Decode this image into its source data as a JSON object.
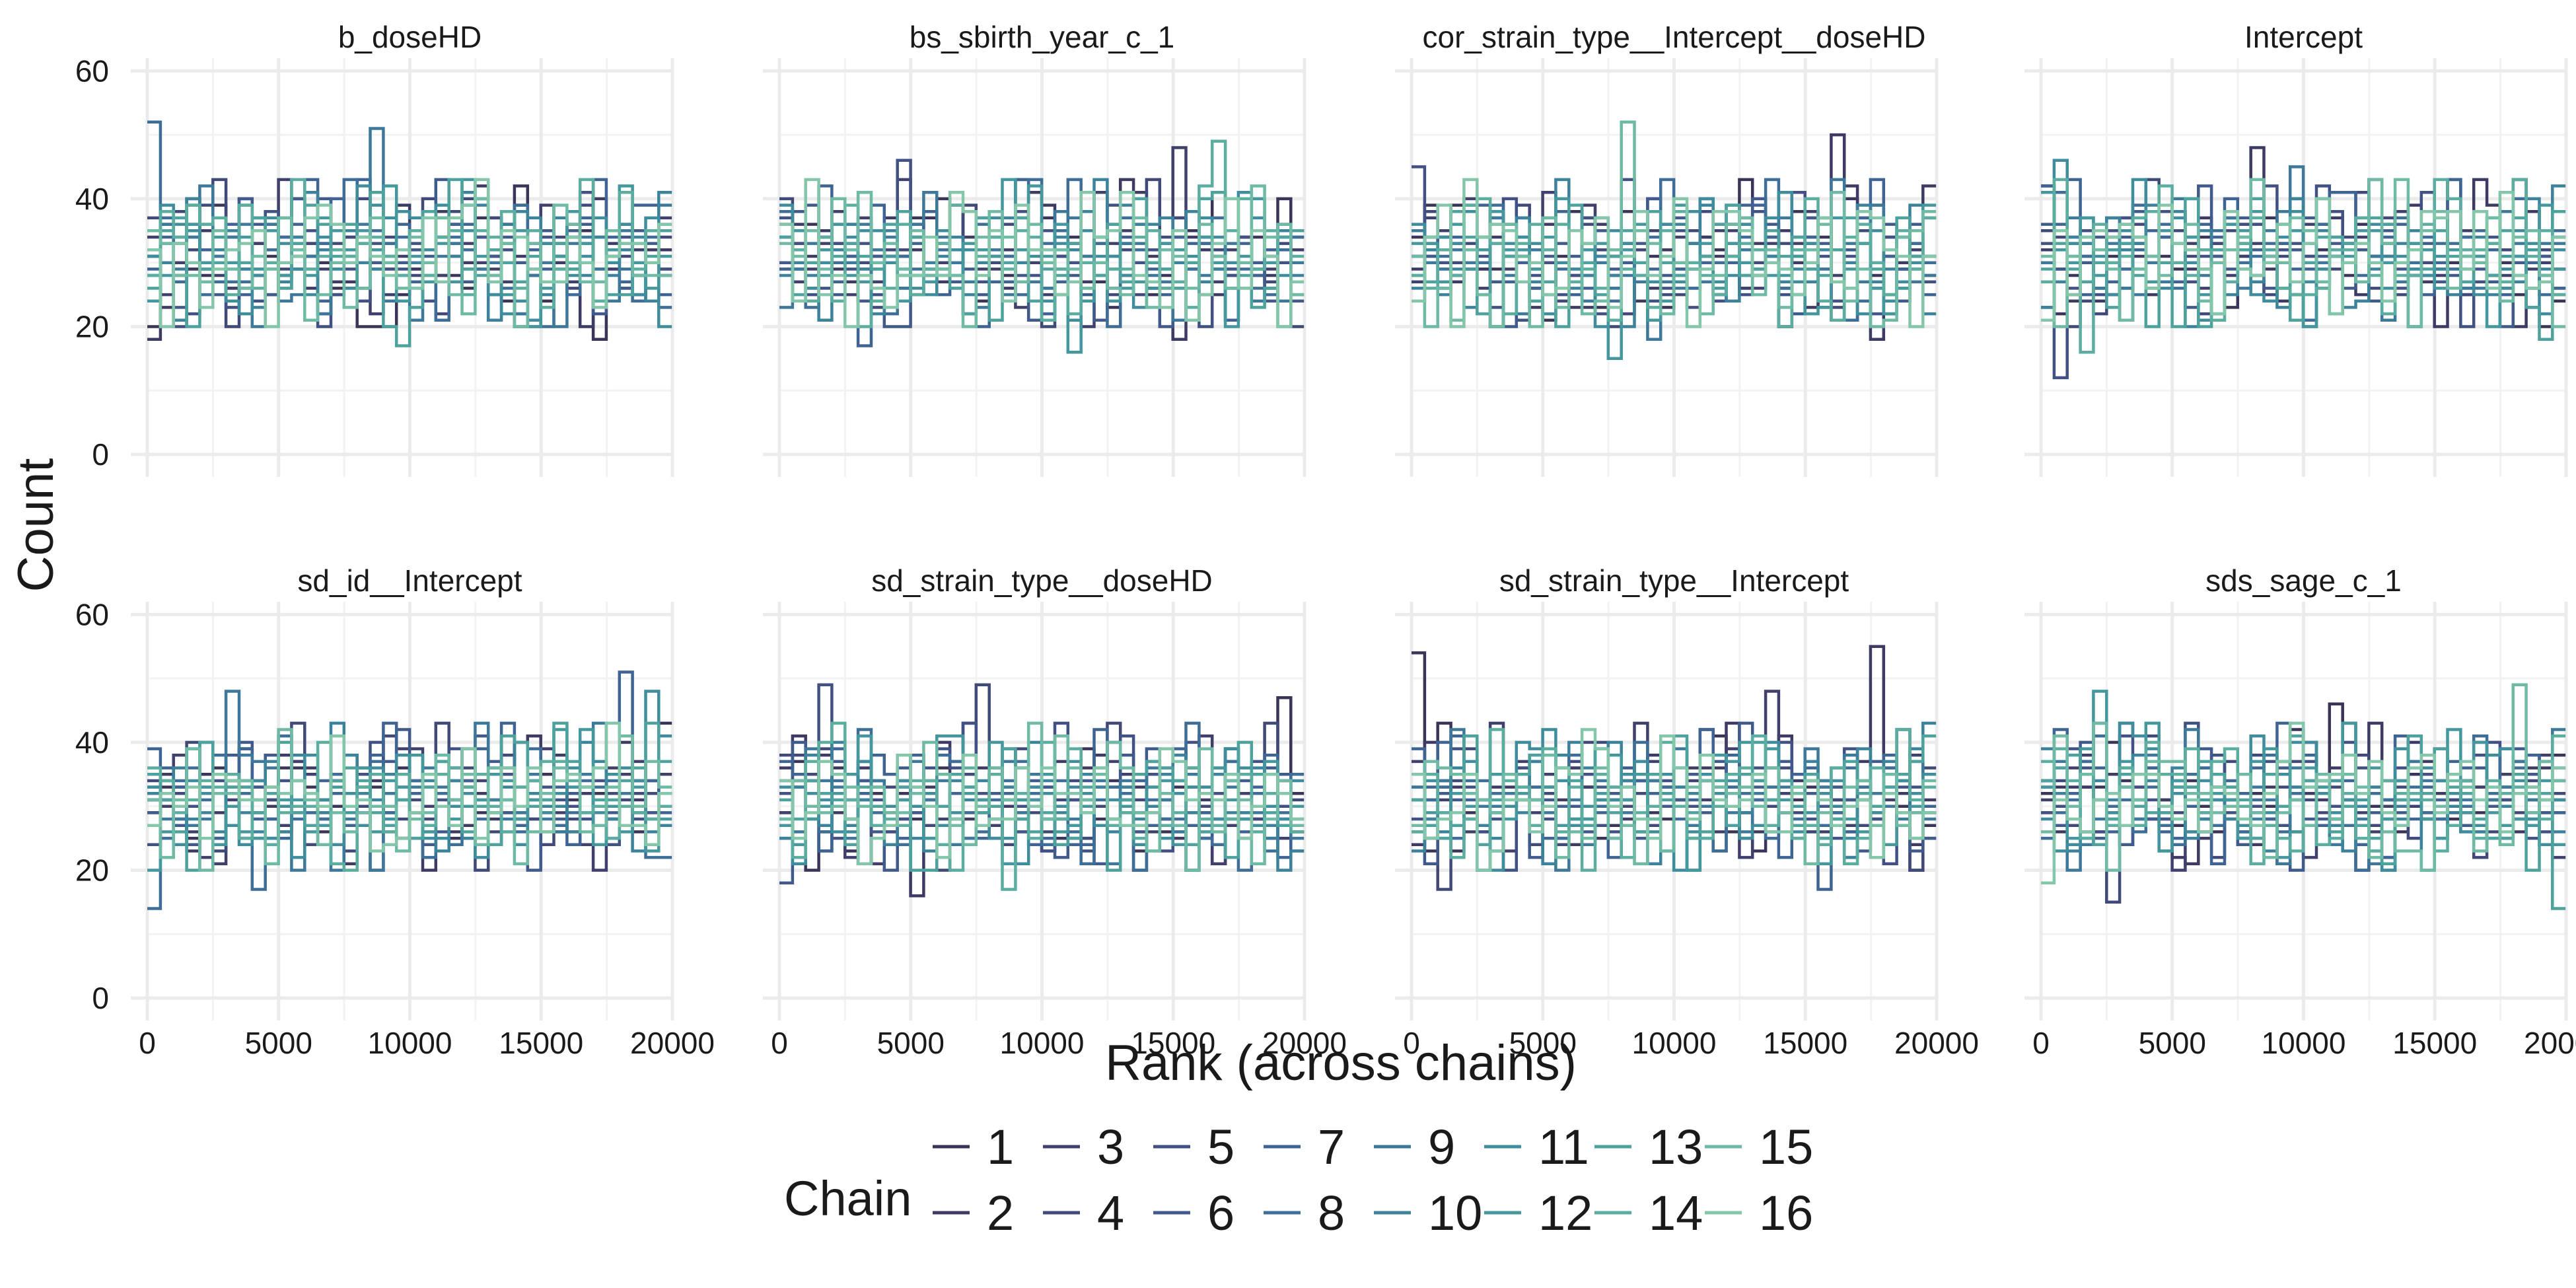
{
  "chart_data": {
    "type": "line",
    "subtype": "rank-histogram-step",
    "xlabel": "Rank (across chains)",
    "ylabel": "Count",
    "x_ticks": [
      0,
      5000,
      10000,
      15000,
      20000
    ],
    "y_ticks": [
      0,
      20,
      40,
      60
    ],
    "xlim": [
      0,
      20000
    ],
    "ylim": [
      0,
      62
    ],
    "n_bins": 40,
    "grid": true,
    "legend": {
      "title": "Chain",
      "placement": "bottom",
      "entries": [
        "1",
        "2",
        "3",
        "4",
        "5",
        "6",
        "7",
        "8",
        "9",
        "10",
        "11",
        "12",
        "13",
        "14",
        "15",
        "16"
      ],
      "colors": [
        "#3a3558",
        "#3d3b63",
        "#40406d",
        "#414978",
        "#415183",
        "#405a8c",
        "#3f6493",
        "#3e6e97",
        "#3d789a",
        "#3c829b",
        "#3e8c9c",
        "#43979d",
        "#4ea29e",
        "#5bada0",
        "#6ebaa4",
        "#84c6aa"
      ]
    },
    "panels": [
      {
        "title": "b_doseHD",
        "seed": 11,
        "peaks": [
          [
            0,
            8,
            52
          ],
          [
            17,
            9,
            51
          ],
          [
            34,
            1,
            47
          ]
        ],
        "dips": [
          [
            0,
            2,
            18
          ],
          [
            19,
            13,
            17
          ],
          [
            34,
            1,
            18
          ]
        ]
      },
      {
        "title": "bs_sbirth_year_c_1",
        "seed": 23,
        "peaks": [
          [
            30,
            3,
            48
          ],
          [
            33,
            14,
            49
          ],
          [
            9,
            5,
            46
          ]
        ],
        "dips": [
          [
            6,
            7,
            17
          ],
          [
            22,
            12,
            16
          ],
          [
            30,
            2,
            18
          ]
        ]
      },
      {
        "title": "cor_strain_type__Intercept__doseHD",
        "seed": 37,
        "peaks": [
          [
            16,
            15,
            52
          ],
          [
            32,
            2,
            50
          ],
          [
            0,
            5,
            45
          ]
        ],
        "dips": [
          [
            15,
            12,
            15
          ],
          [
            18,
            9,
            18
          ],
          [
            35,
            2,
            18
          ]
        ]
      },
      {
        "title": "Intercept",
        "seed": 41,
        "peaks": [
          [
            1,
            11,
            46
          ],
          [
            16,
            2,
            48
          ],
          [
            19,
            9,
            45
          ]
        ],
        "dips": [
          [
            1,
            5,
            12
          ],
          [
            3,
            14,
            16
          ],
          [
            38,
            13,
            18
          ]
        ]
      },
      {
        "title": "sd_id__Intercept",
        "seed": 53,
        "peaks": [
          [
            36,
            7,
            51
          ],
          [
            38,
            11,
            48
          ],
          [
            6,
            9,
            48
          ]
        ],
        "dips": [
          [
            0,
            8,
            14
          ],
          [
            8,
            8,
            17
          ],
          [
            29,
            6,
            20
          ]
        ]
      },
      {
        "title": "sd_strain_type__doseHD",
        "seed": 67,
        "peaks": [
          [
            3,
            5,
            49
          ],
          [
            15,
            4,
            49
          ],
          [
            38,
            1,
            47
          ]
        ],
        "dips": [
          [
            10,
            2,
            16
          ],
          [
            17,
            14,
            17
          ],
          [
            0,
            6,
            18
          ]
        ]
      },
      {
        "title": "sd_strain_type__Intercept",
        "seed": 71,
        "peaks": [
          [
            0,
            1,
            54
          ],
          [
            35,
            2,
            55
          ],
          [
            27,
            3,
            48
          ]
        ],
        "dips": [
          [
            31,
            7,
            17
          ],
          [
            2,
            4,
            17
          ],
          [
            38,
            1,
            20
          ]
        ]
      },
      {
        "title": "sds_sage_c_1",
        "seed": 83,
        "peaks": [
          [
            36,
            15,
            49
          ],
          [
            4,
            12,
            48
          ],
          [
            22,
            1,
            46
          ]
        ],
        "dips": [
          [
            39,
            13,
            14
          ],
          [
            5,
            4,
            15
          ],
          [
            0,
            16,
            18
          ]
        ]
      }
    ]
  }
}
